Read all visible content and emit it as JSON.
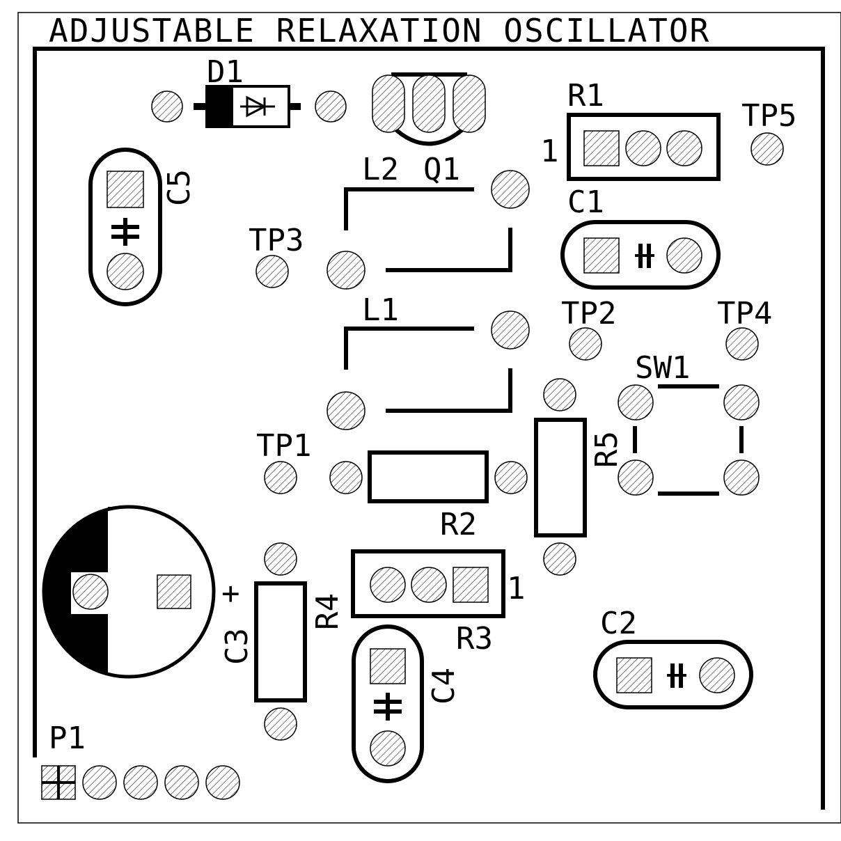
{
  "title": "ADJUSTABLE RELAXATION OSCILLATOR",
  "components": {
    "d1": "D1",
    "c5": "C5",
    "l2": "L2",
    "q1": "Q1",
    "r1": "R1",
    "r1_pin": "1",
    "tp5": "TP5",
    "c1": "C1",
    "tp3": "TP3",
    "l1": "L1",
    "tp2": "TP2",
    "tp4": "TP4",
    "sw1": "SW1",
    "r5": "R5",
    "tp1": "TP1",
    "r2": "R2",
    "r3": "R3",
    "r3_pin": "1",
    "r4": "R4",
    "c3": "C3",
    "c3_polarity": "+",
    "c4": "C4",
    "c2": "C2",
    "p1": "P1"
  },
  "colors": {
    "ink": "#000000",
    "board": "#ffffff",
    "pad_hatch": "#555555"
  }
}
